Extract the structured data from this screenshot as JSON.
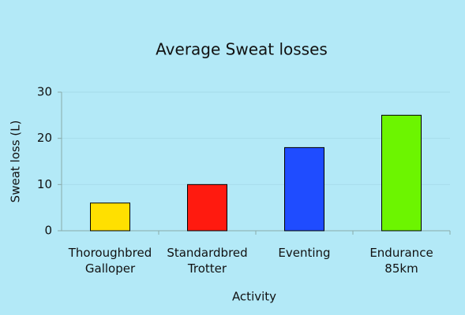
{
  "chart_data": {
    "type": "bar",
    "title": "Average Sweat losses",
    "x_label": "Activity",
    "y_label": "Sweat loss (L)",
    "categories": [
      "Thoroughbred Galloper",
      "Standardbred Trotter",
      "Eventing",
      "Endurance 85km"
    ],
    "values": [
      6,
      10,
      18,
      25
    ],
    "colors": [
      "#ffe000",
      "#ff1a0f",
      "#1f4cff",
      "#6cf500"
    ],
    "ylim": [
      0,
      30
    ],
    "yticks": [
      0,
      10,
      20,
      30
    ],
    "grid": true
  }
}
